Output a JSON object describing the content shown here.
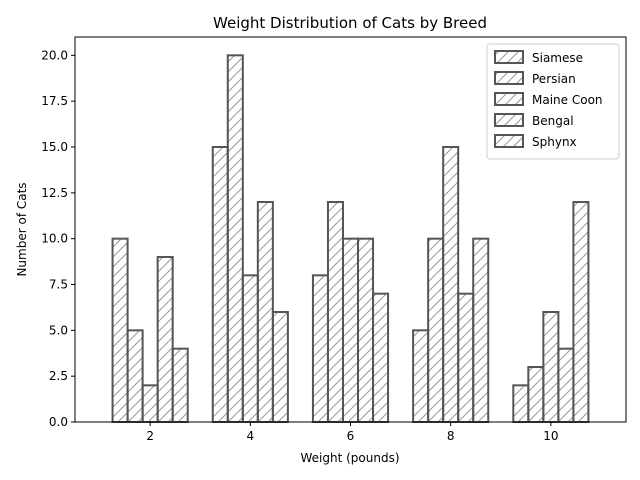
{
  "chart_data": {
    "type": "bar",
    "title": "Weight Distribution of Cats by Breed",
    "xlabel": "Weight (pounds)",
    "ylabel": "Number of Cats",
    "categories": [
      "2",
      "4",
      "6",
      "8",
      "10"
    ],
    "x": [
      2,
      4,
      6,
      8,
      10
    ],
    "xlim": [
      0.5,
      11.5
    ],
    "ylim": [
      0,
      21
    ],
    "yticks": [
      0.0,
      2.5,
      5.0,
      7.5,
      10.0,
      12.5,
      15.0,
      17.5,
      20.0
    ],
    "ytick_labels": [
      "0.0",
      "2.5",
      "5.0",
      "7.5",
      "10.0",
      "12.5",
      "15.0",
      "17.5",
      "20.0"
    ],
    "series": [
      {
        "name": "Siamese",
        "values": [
          10,
          15,
          8,
          5,
          2
        ]
      },
      {
        "name": "Persian",
        "values": [
          5,
          20,
          12,
          10,
          3
        ]
      },
      {
        "name": "Maine Coon",
        "values": [
          2,
          8,
          10,
          15,
          6
        ]
      },
      {
        "name": "Bengal",
        "values": [
          9,
          12,
          10,
          7,
          4
        ]
      },
      {
        "name": "Sphynx",
        "values": [
          4,
          6,
          7,
          10,
          12
        ]
      }
    ],
    "legend_position": "top-right",
    "grid": false,
    "bar_fill": "#ffffff",
    "bar_edge": "#555555",
    "hatch": "diagonal"
  }
}
